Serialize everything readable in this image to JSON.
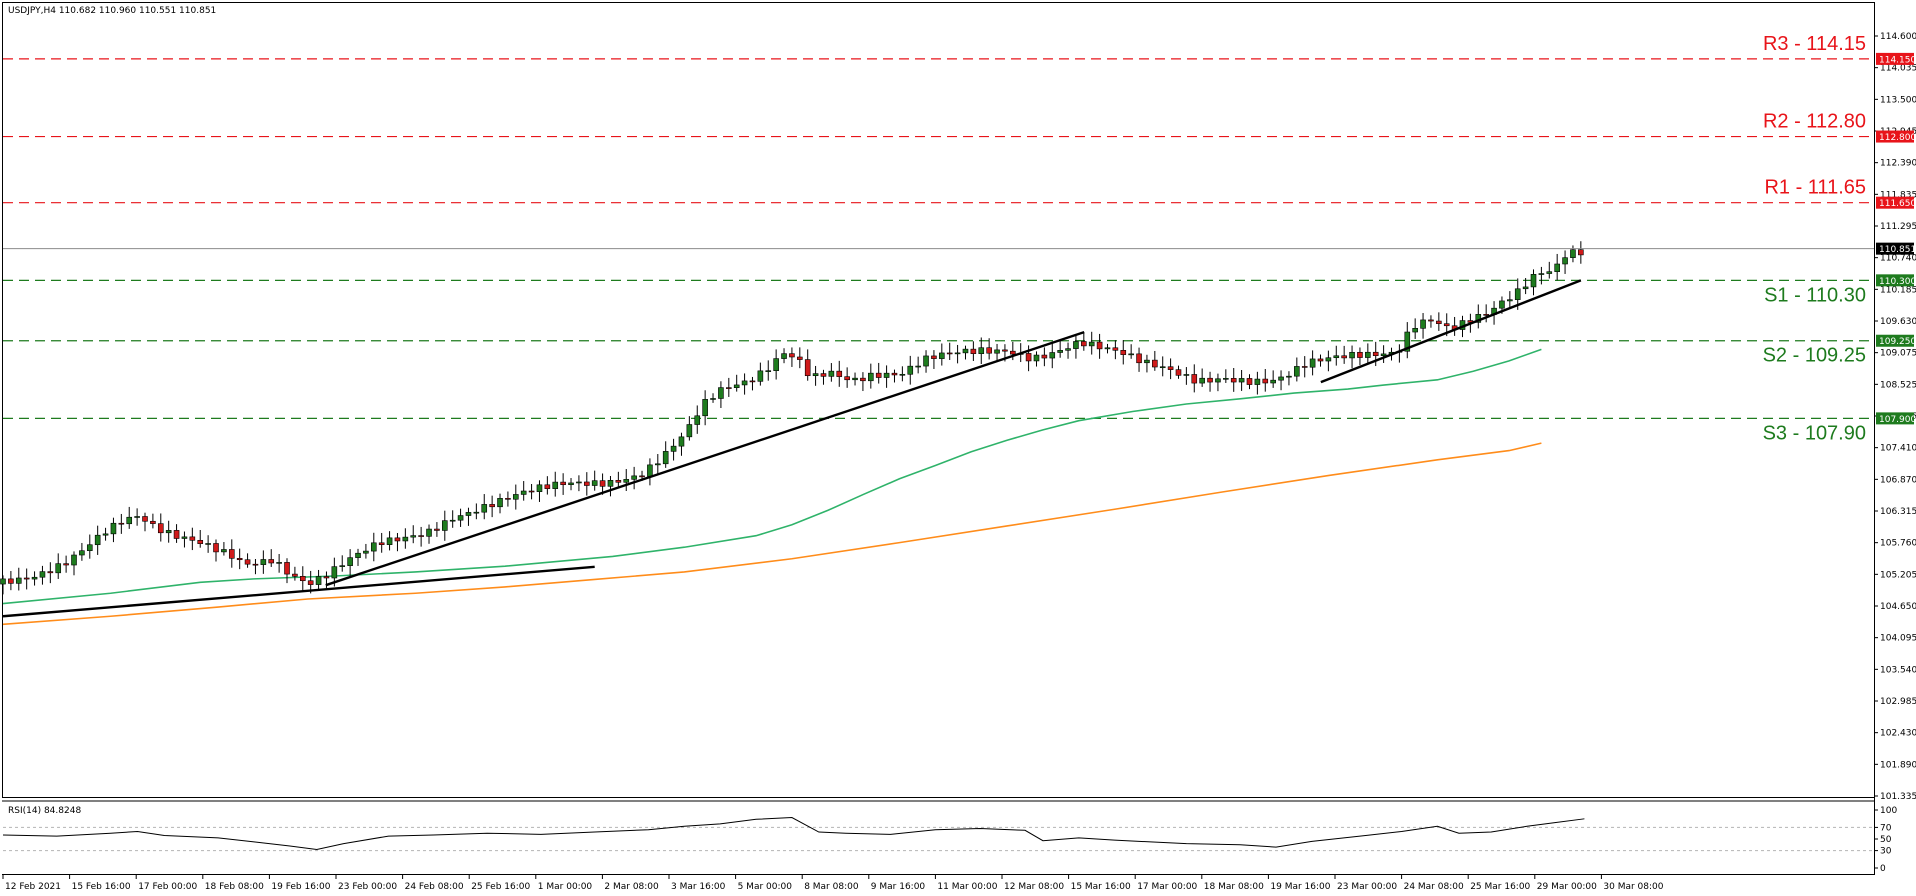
{
  "chart_data": {
    "type": "candlestick",
    "symbol_header": "USDJPY,H4  110.682 110.960 110.551 110.851",
    "ylim": [
      101.335,
      115.0
    ],
    "y_ticks": [
      "114.600",
      "114.035",
      "113.500",
      "112.945",
      "112.390",
      "111.835",
      "111.295",
      "110.740",
      "110.185",
      "109.630",
      "109.075",
      "108.525",
      "107.965",
      "107.410",
      "106.870",
      "106.315",
      "105.760",
      "105.205",
      "104.650",
      "104.095",
      "103.540",
      "102.985",
      "102.430",
      "101.890",
      "101.335"
    ],
    "x_ticks": [
      "12 Feb 2021",
      "15 Feb 16:00",
      "17 Feb 00:00",
      "18 Feb 08:00",
      "19 Feb 16:00",
      "23 Feb 00:00",
      "24 Feb 08:00",
      "25 Feb 16:00",
      "1 Mar 00:00",
      "2 Mar 08:00",
      "3 Mar 16:00",
      "5 Mar 00:00",
      "8 Mar 08:00",
      "9 Mar 16:00",
      "11 Mar 00:00",
      "12 Mar 08:00",
      "15 Mar 16:00",
      "17 Mar 00:00",
      "18 Mar 08:00",
      "19 Mar 16:00",
      "23 Mar 00:00",
      "24 Mar 08:00",
      "25 Mar 16:00",
      "29 Mar 00:00",
      "30 Mar 08:00"
    ],
    "current_price": {
      "label": "110.851",
      "value": 110.851
    },
    "levels": [
      {
        "name": "R3",
        "label": "R3 - 114.15",
        "tag": "114.150",
        "value": 114.15,
        "color": "#e8141a"
      },
      {
        "name": "R2",
        "label": "R2 - 112.80",
        "tag": "112.800",
        "value": 112.8,
        "color": "#e8141a"
      },
      {
        "name": "R1",
        "label": "R1 - 111.65",
        "tag": "111.650",
        "value": 111.65,
        "color": "#e8141a"
      },
      {
        "name": "S1",
        "label": "S1 - 110.30",
        "tag": "110.300",
        "value": 110.3,
        "color": "#1e7b1e"
      },
      {
        "name": "S2",
        "label": "S2 - 109.25",
        "tag": "109.250",
        "value": 109.25,
        "color": "#1e7b1e"
      },
      {
        "name": "S3",
        "label": "S3 - 107.90",
        "tag": "107.900",
        "value": 107.9,
        "color": "#1e7b1e"
      }
    ],
    "ma_colors": {
      "green": "#2fb36a",
      "orange": "#ff8c1a"
    },
    "candle_colors": {
      "up": "#1e7b1e",
      "down": "#d01a1a"
    },
    "ma_green": [
      [
        0,
        104.68
      ],
      [
        60,
        104.86
      ],
      [
        110,
        105.05
      ],
      [
        140,
        105.11
      ],
      [
        185,
        105.16
      ],
      [
        230,
        105.23
      ],
      [
        280,
        105.33
      ],
      [
        340,
        105.5
      ],
      [
        380,
        105.66
      ],
      [
        420,
        105.86
      ],
      [
        440,
        106.05
      ],
      [
        460,
        106.3
      ],
      [
        480,
        106.58
      ],
      [
        500,
        106.85
      ],
      [
        520,
        107.08
      ],
      [
        540,
        107.32
      ],
      [
        560,
        107.52
      ],
      [
        580,
        107.7
      ],
      [
        600,
        107.86
      ],
      [
        630,
        108.02
      ],
      [
        660,
        108.15
      ],
      [
        690,
        108.24
      ],
      [
        720,
        108.34
      ],
      [
        750,
        108.41
      ],
      [
        770,
        108.48
      ],
      [
        800,
        108.57
      ],
      [
        820,
        108.72
      ],
      [
        840,
        108.9
      ],
      [
        858,
        109.1
      ]
    ],
    "ma_orange": [
      [
        0,
        104.32
      ],
      [
        60,
        104.46
      ],
      [
        120,
        104.62
      ],
      [
        170,
        104.76
      ],
      [
        230,
        104.86
      ],
      [
        280,
        104.97
      ],
      [
        330,
        105.1
      ],
      [
        380,
        105.23
      ],
      [
        440,
        105.46
      ],
      [
        500,
        105.74
      ],
      [
        560,
        106.03
      ],
      [
        620,
        106.32
      ],
      [
        680,
        106.62
      ],
      [
        740,
        106.91
      ],
      [
        800,
        107.18
      ],
      [
        840,
        107.34
      ],
      [
        858,
        107.47
      ]
    ],
    "trendlines": [
      [
        [
          0,
          104.46
        ],
        [
          330,
          105.32
        ]
      ],
      [
        [
          180,
          105.0
        ],
        [
          603,
          109.4
        ]
      ],
      [
        [
          735,
          108.53
        ],
        [
          880,
          110.3
        ]
      ]
    ],
    "price_path": [
      [
        0,
        105.02
      ],
      [
        20,
        105.2
      ],
      [
        40,
        105.48
      ],
      [
        60,
        105.9
      ],
      [
        70,
        106.05
      ],
      [
        80,
        106.12
      ],
      [
        90,
        105.9
      ],
      [
        100,
        105.8
      ],
      [
        115,
        105.75
      ],
      [
        130,
        105.62
      ],
      [
        140,
        105.45
      ],
      [
        155,
        105.5
      ],
      [
        165,
        105.18
      ],
      [
        175,
        104.98
      ],
      [
        185,
        105.1
      ],
      [
        200,
        105.42
      ],
      [
        215,
        105.72
      ],
      [
        240,
        105.98
      ],
      [
        255,
        106.24
      ],
      [
        270,
        106.35
      ],
      [
        285,
        106.46
      ],
      [
        300,
        106.58
      ],
      [
        318,
        106.72
      ],
      [
        340,
        106.82
      ],
      [
        360,
        107.0
      ],
      [
        372,
        107.28
      ],
      [
        385,
        107.65
      ],
      [
        395,
        108.1
      ],
      [
        405,
        108.32
      ],
      [
        420,
        108.46
      ],
      [
        430,
        108.7
      ],
      [
        440,
        109.05
      ],
      [
        448,
        108.98
      ],
      [
        455,
        108.68
      ],
      [
        465,
        108.8
      ],
      [
        478,
        108.62
      ],
      [
        490,
        108.66
      ],
      [
        505,
        108.6
      ],
      [
        520,
        108.86
      ],
      [
        535,
        109.0
      ],
      [
        550,
        109.1
      ],
      [
        565,
        109.15
      ],
      [
        578,
        109.02
      ],
      [
        590,
        109.08
      ],
      [
        605,
        109.2
      ],
      [
        618,
        109.05
      ],
      [
        628,
        108.96
      ],
      [
        640,
        108.82
      ],
      [
        655,
        108.75
      ],
      [
        670,
        108.62
      ],
      [
        685,
        108.68
      ],
      [
        700,
        108.58
      ],
      [
        712,
        108.53
      ],
      [
        720,
        108.58
      ],
      [
        732,
        108.78
      ],
      [
        745,
        108.88
      ],
      [
        758,
        108.98
      ],
      [
        770,
        109.05
      ],
      [
        782,
        109.12
      ],
      [
        790,
        109.58
      ],
      [
        800,
        109.7
      ],
      [
        812,
        109.48
      ],
      [
        822,
        109.58
      ],
      [
        832,
        109.66
      ],
      [
        842,
        109.86
      ],
      [
        848,
        109.98
      ],
      [
        855,
        110.2
      ],
      [
        860,
        110.38
      ],
      [
        865,
        110.4
      ],
      [
        870,
        110.5
      ],
      [
        876,
        110.78
      ],
      [
        882,
        110.851
      ]
    ]
  },
  "rsi": {
    "header": "RSI(14) 84.8248",
    "ticks": [
      "100",
      "70",
      "50",
      "30",
      "0"
    ],
    "path": [
      [
        0,
        57
      ],
      [
        30,
        55
      ],
      [
        60,
        60
      ],
      [
        75,
        63
      ],
      [
        90,
        56
      ],
      [
        120,
        52
      ],
      [
        140,
        45
      ],
      [
        160,
        38
      ],
      [
        175,
        32
      ],
      [
        190,
        42
      ],
      [
        215,
        55
      ],
      [
        240,
        57
      ],
      [
        270,
        60
      ],
      [
        300,
        58
      ],
      [
        330,
        62
      ],
      [
        360,
        66
      ],
      [
        380,
        72
      ],
      [
        400,
        76
      ],
      [
        420,
        84
      ],
      [
        440,
        87
      ],
      [
        455,
        62
      ],
      [
        470,
        60
      ],
      [
        495,
        58
      ],
      [
        520,
        66
      ],
      [
        545,
        68
      ],
      [
        570,
        65
      ],
      [
        580,
        47
      ],
      [
        600,
        52
      ],
      [
        620,
        48
      ],
      [
        640,
        45
      ],
      [
        660,
        42
      ],
      [
        690,
        40
      ],
      [
        710,
        36
      ],
      [
        730,
        46
      ],
      [
        760,
        56
      ],
      [
        780,
        63
      ],
      [
        800,
        72
      ],
      [
        812,
        60
      ],
      [
        830,
        62
      ],
      [
        850,
        72
      ],
      [
        865,
        78
      ],
      [
        882,
        84.8
      ]
    ]
  }
}
